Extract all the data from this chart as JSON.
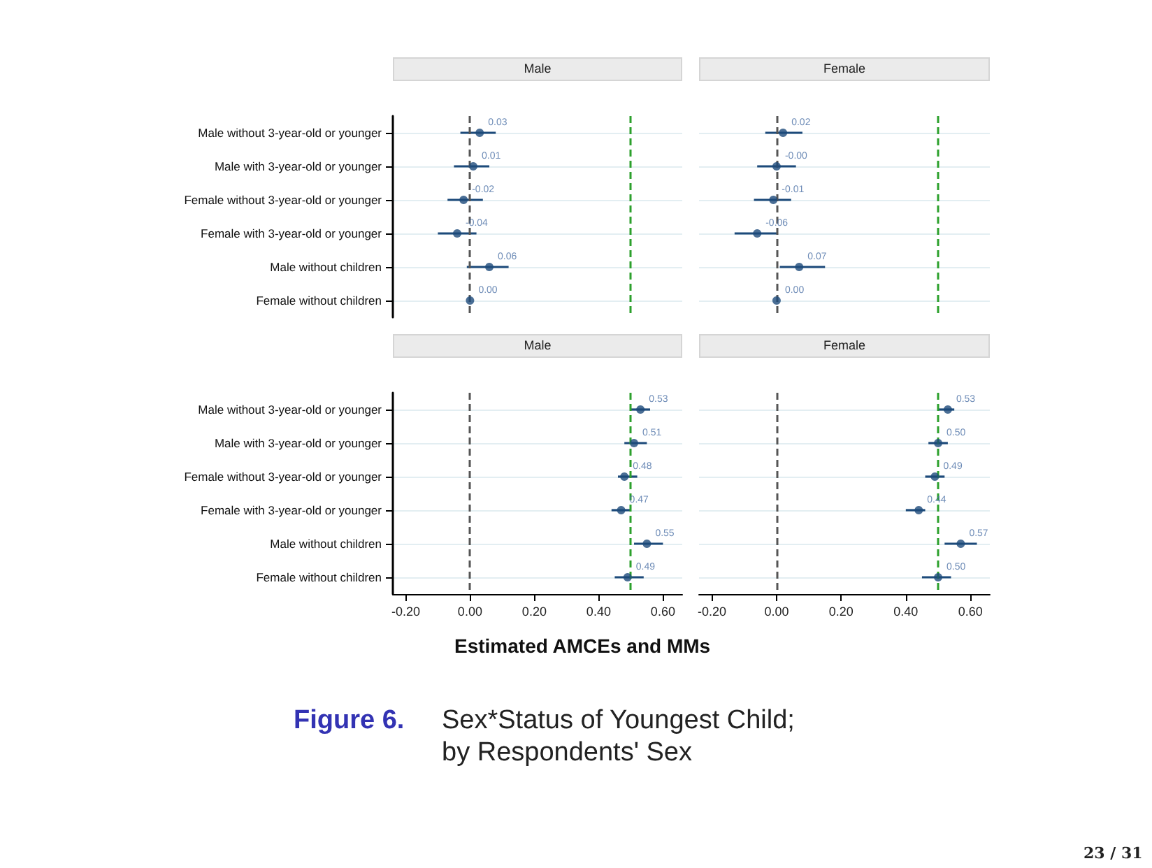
{
  "chart_data": [
    {
      "type": "scatter",
      "title": "Male",
      "orientation": "horizontal",
      "categories": [
        "Male without 3-year-old or younger",
        "Male with 3-year-old or younger",
        "Female without 3-year-old or younger",
        "Female with 3-year-old or younger",
        "Male without children",
        "Female without children"
      ],
      "series": [
        {
          "color": "#1d4a7a",
          "values": [
            0.03,
            0.01,
            -0.02,
            -0.04,
            0.06,
            0.0
          ],
          "value_labels": [
            "0.03",
            "0.01",
            "-0.02",
            "-0.04",
            "0.06",
            "0.00"
          ],
          "errors": [
            [
              -0.03,
              0.08
            ],
            [
              -0.05,
              0.06
            ],
            [
              -0.07,
              0.04
            ],
            [
              -0.1,
              0.02
            ],
            [
              -0.01,
              0.12
            ],
            null
          ]
        }
      ],
      "xlim": [
        -0.24,
        0.66
      ],
      "grid": "y",
      "marker": "circle",
      "tick_labels": "y",
      "ref_lines": [
        {
          "axis": "x",
          "value": 0,
          "color": "#555555",
          "line_style": "dashed"
        },
        {
          "axis": "x",
          "value": 0.5,
          "color": "#2ca02c",
          "line_style": "dashed"
        }
      ]
    },
    {
      "type": "scatter",
      "title": "Female",
      "orientation": "horizontal",
      "categories": [
        null,
        null,
        null,
        null,
        null,
        null
      ],
      "series": [
        {
          "color": "#1d4a7a",
          "values": [
            0.02,
            0.0,
            -0.01,
            -0.06,
            0.07,
            0.0
          ],
          "value_labels": [
            "0.02",
            "-0.00",
            "-0.01",
            "-0.06",
            "0.07",
            "0.00"
          ],
          "errors": [
            [
              -0.035,
              0.08
            ],
            [
              -0.06,
              0.06
            ],
            [
              -0.07,
              0.045
            ],
            [
              -0.13,
              0.0
            ],
            [
              0.01,
              0.15
            ],
            null
          ]
        }
      ],
      "xlim": [
        -0.24,
        0.66
      ],
      "grid": "y",
      "marker": "circle",
      "tick_labels": false,
      "ref_lines": [
        {
          "axis": "x",
          "value": 0,
          "color": "#555555",
          "line_style": "dashed"
        },
        {
          "axis": "x",
          "value": 0.5,
          "color": "#2ca02c",
          "line_style": "dashed"
        }
      ]
    },
    {
      "type": "scatter",
      "title": "Male",
      "orientation": "horizontal",
      "xlabel": "Estimated AMCEs and MMs",
      "categories": [
        "Male without 3-year-old or younger",
        "Male with 3-year-old or younger",
        "Female without 3-year-old or younger",
        "Female with 3-year-old or younger",
        "Male without children",
        "Female without children"
      ],
      "series": [
        {
          "color": "#1d4a7a",
          "values": [
            0.53,
            0.51,
            0.48,
            0.47,
            0.55,
            0.49
          ],
          "value_labels": [
            "0.53",
            "0.51",
            "0.48",
            "0.47",
            "0.55",
            "0.49"
          ],
          "errors": [
            [
              0.5,
              0.56
            ],
            [
              0.48,
              0.55
            ],
            [
              0.46,
              0.52
            ],
            [
              0.44,
              0.5
            ],
            [
              0.51,
              0.6
            ],
            [
              0.45,
              0.54
            ]
          ]
        }
      ],
      "xlim": [
        -0.24,
        0.66
      ],
      "xticks": [
        {
          "value": -0.2,
          "label": "-0.20"
        },
        {
          "value": 0,
          "label": "0.00"
        },
        {
          "value": 0.2,
          "label": "0.20"
        },
        {
          "value": 0.4,
          "label": "0.40"
        },
        {
          "value": 0.6,
          "label": "0.60"
        }
      ],
      "grid": "y",
      "marker": "circle",
      "ref_lines": [
        {
          "axis": "x",
          "value": 0,
          "color": "#555555",
          "line_style": "dashed"
        },
        {
          "axis": "x",
          "value": 0.5,
          "color": "#2ca02c",
          "line_style": "dashed"
        }
      ]
    },
    {
      "type": "scatter",
      "title": "Female",
      "orientation": "horizontal",
      "categories": [
        null,
        null,
        null,
        null,
        null,
        null
      ],
      "series": [
        {
          "color": "#1d4a7a",
          "values": [
            0.53,
            0.5,
            0.49,
            0.44,
            0.57,
            0.5
          ],
          "value_labels": [
            "0.53",
            "0.50",
            "0.49",
            "0.44",
            "0.57",
            "0.50"
          ],
          "errors": [
            [
              0.5,
              0.55
            ],
            [
              0.47,
              0.53
            ],
            [
              0.46,
              0.52
            ],
            [
              0.4,
              0.46
            ],
            [
              0.52,
              0.62
            ],
            [
              0.45,
              0.54
            ]
          ]
        }
      ],
      "xlim": [
        -0.24,
        0.66
      ],
      "xticks": [
        {
          "value": -0.2,
          "label": "-0.20"
        },
        {
          "value": 0,
          "label": "0.00"
        },
        {
          "value": 0.2,
          "label": "0.20"
        },
        {
          "value": 0.4,
          "label": "0.40"
        },
        {
          "value": 0.6,
          "label": "0.60"
        }
      ],
      "grid": "y",
      "marker": "circle",
      "tick_labels": "x",
      "ref_lines": [
        {
          "axis": "x",
          "value": 0,
          "color": "#555555",
          "line_style": "dashed"
        },
        {
          "axis": "x",
          "value": 0.5,
          "color": "#2ca02c",
          "line_style": "dashed"
        }
      ],
      "annotations": [
        "Figure 6.",
        "Sex*Status of Youngest Child;",
        "by Respondents' Sex",
        "23 / 31"
      ]
    }
  ]
}
